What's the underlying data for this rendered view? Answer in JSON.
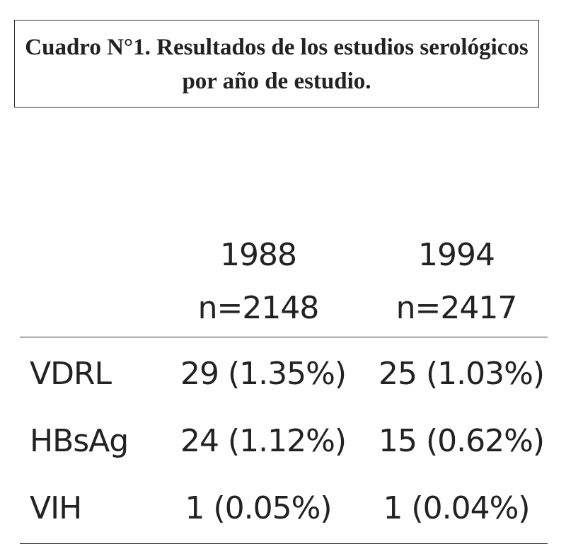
{
  "header": {
    "title_line1": "Cuadro N°1. Resultados de los estudios serológicos",
    "title_line2": "por año de estudio."
  },
  "table": {
    "columns": [
      {
        "year": "1988",
        "n": "n=2148"
      },
      {
        "year": "1994",
        "n": "n=2417"
      }
    ],
    "rows": [
      [
        "VDRL",
        "29 (1.35%)",
        "25 (1.03%)"
      ],
      [
        "HBsAg",
        "24 (1.12%)",
        "15 (0.62%)"
      ],
      [
        "VIH",
        "1 (0.05%)",
        "1 (0.04%)"
      ]
    ]
  }
}
